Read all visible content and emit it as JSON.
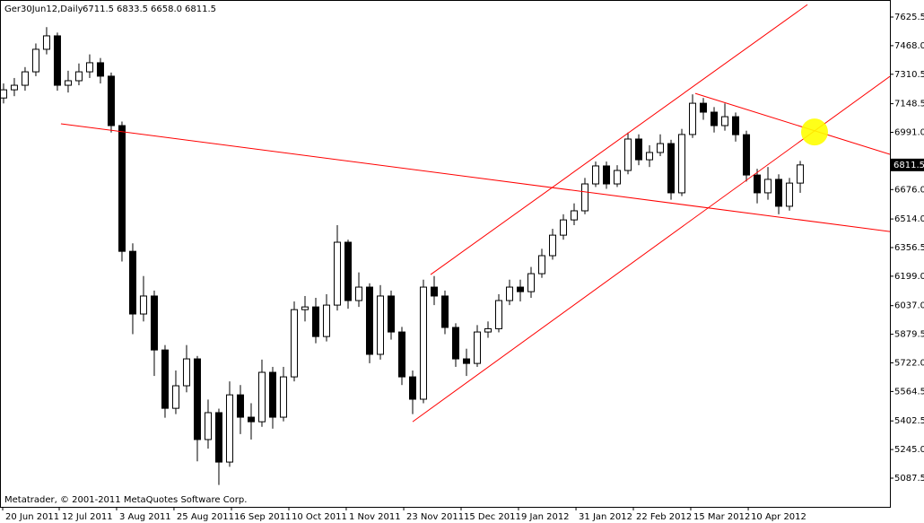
{
  "chart_data": {
    "type": "candlestick",
    "title": "Ger30Jun12,Daily",
    "last_bar_labels": [
      "6711.5",
      "6833.5",
      "6658.0",
      "6811.5"
    ],
    "watermark": "Metatrader, © 2001-2011 MetaQuotes Software Corp.",
    "up_color": "#ffffff",
    "down_color": "#000000",
    "outline_color": "#000000",
    "line_color": "#ff0000",
    "marker_color": "#ffff00",
    "xlim": [
      -0.33,
      82.33
    ],
    "xticks": [
      {
        "value": -0.08,
        "label": "20 Jun 2011"
      },
      {
        "value": 5.17,
        "label": "12 Jul 2011"
      },
      {
        "value": 10.5,
        "label": "3 Aug 2011"
      },
      {
        "value": 15.83,
        "label": "25 Aug 2011"
      },
      {
        "value": 21.17,
        "label": "16 Sep 2011"
      },
      {
        "value": 26.5,
        "label": "10 Oct 2011"
      },
      {
        "value": 31.83,
        "label": "1 Nov 2011"
      },
      {
        "value": 37.17,
        "label": "23 Nov 2011"
      },
      {
        "value": 42.5,
        "label": "15 Dec 2011"
      },
      {
        "value": 47.83,
        "label": "9 Jan 2012"
      },
      {
        "value": 53.17,
        "label": "31 Jan 2012"
      },
      {
        "value": 58.5,
        "label": "22 Feb 2012"
      },
      {
        "value": 63.83,
        "label": "15 Mar 2012"
      },
      {
        "value": 69.17,
        "label": "10 Apr 2012"
      }
    ],
    "ylim": [
      4929.5,
      7719.3
    ],
    "yticks": [
      7625.5,
      {
        "value": 7468,
        "label": "7468.0"
      },
      7310.5,
      7148.5,
      {
        "value": 6991,
        "label": "6991.0"
      },
      {
        "value": 6676,
        "label": "6676.0"
      },
      {
        "value": 6514,
        "label": "6514.0"
      },
      6356.5,
      {
        "value": 6199,
        "label": "6199.0"
      },
      {
        "value": 6037,
        "label": "6037.0"
      },
      5879.5,
      {
        "value": 5722,
        "label": "5722.0"
      },
      5564.5,
      5402.5,
      {
        "value": 5245,
        "label": "5245.0"
      },
      5087.5
    ],
    "open": [
      7180,
      7225,
      7250,
      7324,
      7448,
      7522,
      7250,
      7275,
      7324,
      7374,
      7300,
      7028,
      6336,
      5991,
      6090,
      5793,
      5472,
      5596,
      5744,
      5300,
      5448,
      5176,
      5546,
      5423,
      5398,
      5670,
      5423,
      5645,
      6015,
      6030,
      5867,
      6040,
      6386,
      6065,
      6139,
      5769,
      6090,
      5892,
      5645,
      5522,
      6139,
      6090,
      5917,
      5744,
      5719,
      5892,
      5910,
      6065,
      6139,
      6114,
      6213,
      6312,
      6425,
      6509,
      6559,
      6707,
      6806,
      6707,
      6781,
      6954,
      6840,
      6880,
      6929,
      6658,
      6979,
      7151,
      7102,
      7028,
      7077,
      6978,
      6756,
      6658,
      6732,
      6584,
      6711.5
    ],
    "high": [
      7260,
      7290,
      7350,
      7480,
      7570,
      7540,
      7330,
      7370,
      7420,
      7400,
      7320,
      7050,
      6380,
      6200,
      6120,
      5820,
      5680,
      5820,
      5760,
      5520,
      5470,
      5620,
      5600,
      5500,
      5740,
      5700,
      5700,
      6060,
      6090,
      6080,
      6100,
      6480,
      6400,
      6220,
      6160,
      6150,
      6120,
      5920,
      5680,
      6180,
      6200,
      6120,
      5940,
      5800,
      5930,
      5950,
      6100,
      6180,
      6180,
      6250,
      6350,
      6460,
      6540,
      6600,
      6740,
      6830,
      6830,
      6810,
      6990,
      6980,
      6920,
      6980,
      6950,
      7010,
      7200,
      7180,
      7130,
      7150,
      7100,
      7000,
      6790,
      6800,
      6760,
      6740,
      6833.5
    ],
    "low": [
      7150,
      7190,
      7220,
      7300,
      7420,
      7220,
      7210,
      7250,
      7290,
      7260,
      6990,
      6280,
      5880,
      5950,
      5650,
      5420,
      5440,
      5560,
      5180,
      5250,
      5050,
      5150,
      5330,
      5300,
      5370,
      5360,
      5400,
      5620,
      5950,
      5830,
      5840,
      6010,
      6020,
      6030,
      5720,
      5740,
      5850,
      5600,
      5440,
      5500,
      6040,
      5880,
      5700,
      5650,
      5700,
      5860,
      5890,
      6040,
      6060,
      6080,
      6190,
      6290,
      6400,
      6480,
      6540,
      6690,
      6680,
      6690,
      6760,
      6810,
      6800,
      6860,
      6620,
      6640,
      6960,
      7060,
      6990,
      7000,
      6940,
      6720,
      6600,
      6620,
      6540,
      6560,
      6658
    ],
    "close": [
      7225,
      7250,
      7324,
      7448,
      7522,
      7250,
      7275,
      7324,
      7374,
      7300,
      7028,
      6336,
      5991,
      6090,
      5793,
      5472,
      5596,
      5744,
      5300,
      5448,
      5176,
      5546,
      5423,
      5398,
      5670,
      5423,
      5645,
      6015,
      6030,
      5867,
      6040,
      6386,
      6065,
      6139,
      5769,
      6090,
      5892,
      5645,
      5522,
      6139,
      6090,
      5917,
      5744,
      5719,
      5892,
      5910,
      6065,
      6139,
      6114,
      6213,
      6312,
      6425,
      6509,
      6559,
      6707,
      6806,
      6707,
      6781,
      6954,
      6840,
      6880,
      6929,
      6658,
      6979,
      7151,
      7102,
      7028,
      7077,
      6978,
      6756,
      6658,
      6732,
      6584,
      6711.5,
      6811.5
    ],
    "trendlines": [
      {
        "x": [
          5.33,
          82.33
        ],
        "y": [
          7038,
          6445
        ]
      },
      {
        "x": [
          38,
          82.33
        ],
        "y": [
          5398,
          7299
        ]
      },
      {
        "x": [
          39.67,
          74.67
        ],
        "y": [
          6208,
          7694
        ]
      },
      {
        "x": [
          64.25,
          82.33
        ],
        "y": [
          7205,
          6870
        ]
      }
    ],
    "marker": {
      "x": 75.33,
      "y": 6993
    }
  }
}
